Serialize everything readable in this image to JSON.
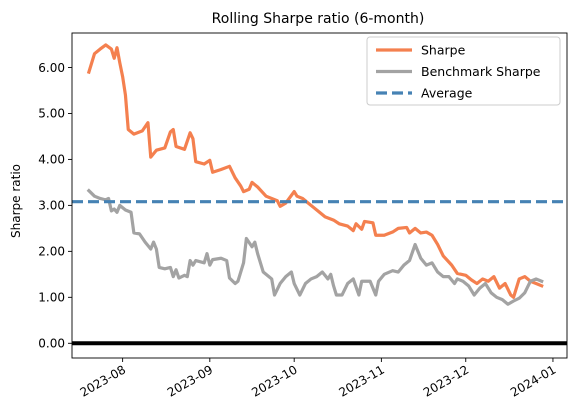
{
  "chart_data": {
    "type": "line",
    "title": "Rolling Sharpe ratio (6-month)",
    "xlabel": "",
    "ylabel": "Sharpe ratio",
    "xlim": [
      "2023-07-14",
      "2024-01-06"
    ],
    "ylim": [
      -0.32,
      6.75
    ],
    "x_ticks": [
      "2023-08",
      "2023-09",
      "2023-10",
      "2023-11",
      "2023-12",
      "2024-01"
    ],
    "y_ticks": [
      "0.00",
      "1.00",
      "2.00",
      "3.00",
      "4.00",
      "5.00",
      "6.00"
    ],
    "legend_position": "upper right",
    "grid": false,
    "series": [
      {
        "name": "Sharpe",
        "color": "#f4804f",
        "style": "solid",
        "points": [
          [
            "2023-07-20",
            5.9
          ],
          [
            "2023-07-22",
            6.3
          ],
          [
            "2023-07-24",
            6.4
          ],
          [
            "2023-07-26",
            6.49
          ],
          [
            "2023-07-28",
            6.4
          ],
          [
            "2023-07-29",
            6.2
          ],
          [
            "2023-07-30",
            6.43
          ],
          [
            "2023-07-31",
            6.1
          ],
          [
            "2023-08-01",
            5.8
          ],
          [
            "2023-08-02",
            5.4
          ],
          [
            "2023-08-03",
            4.65
          ],
          [
            "2023-08-05",
            4.55
          ],
          [
            "2023-08-08",
            4.62
          ],
          [
            "2023-08-10",
            4.8
          ],
          [
            "2023-08-11",
            4.05
          ],
          [
            "2023-08-13",
            4.2
          ],
          [
            "2023-08-16",
            4.25
          ],
          [
            "2023-08-18",
            4.6
          ],
          [
            "2023-08-19",
            4.65
          ],
          [
            "2023-08-20",
            4.28
          ],
          [
            "2023-08-23",
            4.22
          ],
          [
            "2023-08-25",
            4.58
          ],
          [
            "2023-08-26",
            4.45
          ],
          [
            "2023-08-27",
            3.95
          ],
          [
            "2023-08-30",
            3.9
          ],
          [
            "2023-09-01",
            3.98
          ],
          [
            "2023-09-02",
            3.72
          ],
          [
            "2023-09-05",
            3.78
          ],
          [
            "2023-09-08",
            3.85
          ],
          [
            "2023-09-10",
            3.6
          ],
          [
            "2023-09-12",
            3.42
          ],
          [
            "2023-09-13",
            3.3
          ],
          [
            "2023-09-15",
            3.35
          ],
          [
            "2023-09-16",
            3.5
          ],
          [
            "2023-09-18",
            3.4
          ],
          [
            "2023-09-21",
            3.2
          ],
          [
            "2023-09-23",
            3.15
          ],
          [
            "2023-09-25",
            3.1
          ],
          [
            "2023-09-26",
            2.98
          ],
          [
            "2023-09-28",
            3.05
          ],
          [
            "2023-10-01",
            3.3
          ],
          [
            "2023-10-02",
            3.2
          ],
          [
            "2023-10-04",
            3.15
          ],
          [
            "2023-10-06",
            3.05
          ],
          [
            "2023-10-08",
            2.95
          ],
          [
            "2023-10-10",
            2.85
          ],
          [
            "2023-10-12",
            2.75
          ],
          [
            "2023-10-15",
            2.68
          ],
          [
            "2023-10-17",
            2.6
          ],
          [
            "2023-10-20",
            2.55
          ],
          [
            "2023-10-22",
            2.45
          ],
          [
            "2023-10-23",
            2.6
          ],
          [
            "2023-10-25",
            2.48
          ],
          [
            "2023-10-26",
            2.65
          ],
          [
            "2023-10-29",
            2.62
          ],
          [
            "2023-10-30",
            2.35
          ],
          [
            "2023-11-02",
            2.35
          ],
          [
            "2023-11-05",
            2.42
          ],
          [
            "2023-11-07",
            2.5
          ],
          [
            "2023-11-10",
            2.52
          ],
          [
            "2023-11-11",
            2.4
          ],
          [
            "2023-11-13",
            2.5
          ],
          [
            "2023-11-15",
            2.4
          ],
          [
            "2023-11-17",
            2.42
          ],
          [
            "2023-11-19",
            2.35
          ],
          [
            "2023-11-21",
            2.15
          ],
          [
            "2023-11-23",
            1.9
          ],
          [
            "2023-11-26",
            1.7
          ],
          [
            "2023-11-28",
            1.52
          ],
          [
            "2023-12-01",
            1.48
          ],
          [
            "2023-12-03",
            1.38
          ],
          [
            "2023-12-05",
            1.3
          ],
          [
            "2023-12-07",
            1.4
          ],
          [
            "2023-12-09",
            1.35
          ],
          [
            "2023-12-11",
            1.45
          ],
          [
            "2023-12-13",
            1.2
          ],
          [
            "2023-12-15",
            1.3
          ],
          [
            "2023-12-17",
            1.05
          ],
          [
            "2023-12-18",
            1.0
          ],
          [
            "2023-12-20",
            1.4
          ],
          [
            "2023-12-22",
            1.45
          ],
          [
            "2023-12-24",
            1.35
          ],
          [
            "2023-12-26",
            1.3
          ],
          [
            "2023-12-28",
            1.25
          ]
        ]
      },
      {
        "name": "Benchmark Sharpe",
        "color": "#a3a3a3",
        "style": "solid",
        "points": [
          [
            "2023-07-20",
            3.32
          ],
          [
            "2023-07-22",
            3.2
          ],
          [
            "2023-07-24",
            3.15
          ],
          [
            "2023-07-26",
            3.12
          ],
          [
            "2023-07-27",
            3.15
          ],
          [
            "2023-07-28",
            2.88
          ],
          [
            "2023-07-29",
            2.92
          ],
          [
            "2023-07-30",
            2.85
          ],
          [
            "2023-07-31",
            3.0
          ],
          [
            "2023-08-02",
            2.9
          ],
          [
            "2023-08-04",
            2.85
          ],
          [
            "2023-08-05",
            2.4
          ],
          [
            "2023-08-07",
            2.38
          ],
          [
            "2023-08-09",
            2.2
          ],
          [
            "2023-08-11",
            2.05
          ],
          [
            "2023-08-12",
            2.2
          ],
          [
            "2023-08-13",
            2.05
          ],
          [
            "2023-08-14",
            1.65
          ],
          [
            "2023-08-16",
            1.62
          ],
          [
            "2023-08-18",
            1.65
          ],
          [
            "2023-08-19",
            1.45
          ],
          [
            "2023-08-20",
            1.6
          ],
          [
            "2023-08-21",
            1.42
          ],
          [
            "2023-08-23",
            1.48
          ],
          [
            "2023-08-24",
            1.45
          ],
          [
            "2023-08-25",
            1.8
          ],
          [
            "2023-08-26",
            1.7
          ],
          [
            "2023-08-27",
            1.8
          ],
          [
            "2023-08-30",
            1.75
          ],
          [
            "2023-08-31",
            1.95
          ],
          [
            "2023-09-01",
            1.7
          ],
          [
            "2023-09-02",
            1.82
          ],
          [
            "2023-09-05",
            1.85
          ],
          [
            "2023-09-07",
            1.8
          ],
          [
            "2023-09-08",
            1.42
          ],
          [
            "2023-09-10",
            1.3
          ],
          [
            "2023-09-11",
            1.35
          ],
          [
            "2023-09-13",
            1.75
          ],
          [
            "2023-09-14",
            2.28
          ],
          [
            "2023-09-16",
            2.1
          ],
          [
            "2023-09-17",
            2.2
          ],
          [
            "2023-09-18",
            1.95
          ],
          [
            "2023-09-20",
            1.55
          ],
          [
            "2023-09-22",
            1.45
          ],
          [
            "2023-09-23",
            1.4
          ],
          [
            "2023-09-24",
            1.05
          ],
          [
            "2023-09-26",
            1.3
          ],
          [
            "2023-09-28",
            1.45
          ],
          [
            "2023-09-30",
            1.55
          ],
          [
            "2023-10-01",
            1.3
          ],
          [
            "2023-10-03",
            1.05
          ],
          [
            "2023-10-05",
            1.3
          ],
          [
            "2023-10-07",
            1.4
          ],
          [
            "2023-10-09",
            1.45
          ],
          [
            "2023-10-11",
            1.55
          ],
          [
            "2023-10-13",
            1.4
          ],
          [
            "2023-10-14",
            1.5
          ],
          [
            "2023-10-15",
            1.25
          ],
          [
            "2023-10-16",
            1.05
          ],
          [
            "2023-10-18",
            1.05
          ],
          [
            "2023-10-20",
            1.3
          ],
          [
            "2023-10-22",
            1.4
          ],
          [
            "2023-10-24",
            1.05
          ],
          [
            "2023-10-25",
            1.35
          ],
          [
            "2023-10-28",
            1.35
          ],
          [
            "2023-10-30",
            1.05
          ],
          [
            "2023-10-31",
            1.35
          ],
          [
            "2023-11-02",
            1.5
          ],
          [
            "2023-11-05",
            1.58
          ],
          [
            "2023-11-07",
            1.55
          ],
          [
            "2023-11-09",
            1.7
          ],
          [
            "2023-11-11",
            1.8
          ],
          [
            "2023-11-13",
            2.15
          ],
          [
            "2023-11-15",
            1.85
          ],
          [
            "2023-11-17",
            1.7
          ],
          [
            "2023-11-19",
            1.75
          ],
          [
            "2023-11-21",
            1.55
          ],
          [
            "2023-11-23",
            1.45
          ],
          [
            "2023-11-25",
            1.45
          ],
          [
            "2023-11-27",
            1.3
          ],
          [
            "2023-11-28",
            1.4
          ],
          [
            "2023-11-30",
            1.35
          ],
          [
            "2023-12-02",
            1.25
          ],
          [
            "2023-12-04",
            1.05
          ],
          [
            "2023-12-06",
            1.2
          ],
          [
            "2023-12-08",
            1.3
          ],
          [
            "2023-12-10",
            1.1
          ],
          [
            "2023-12-12",
            1.0
          ],
          [
            "2023-12-14",
            0.95
          ],
          [
            "2023-12-16",
            0.85
          ],
          [
            "2023-12-18",
            0.92
          ],
          [
            "2023-12-20",
            0.98
          ],
          [
            "2023-12-22",
            1.1
          ],
          [
            "2023-12-24",
            1.35
          ],
          [
            "2023-12-26",
            1.4
          ],
          [
            "2023-12-28",
            1.35
          ]
        ]
      },
      {
        "name": "Average",
        "color": "#4682b4",
        "style": "dashed",
        "value": 3.08
      }
    ],
    "reference_line": {
      "value": 0.0,
      "color": "#000000"
    }
  }
}
